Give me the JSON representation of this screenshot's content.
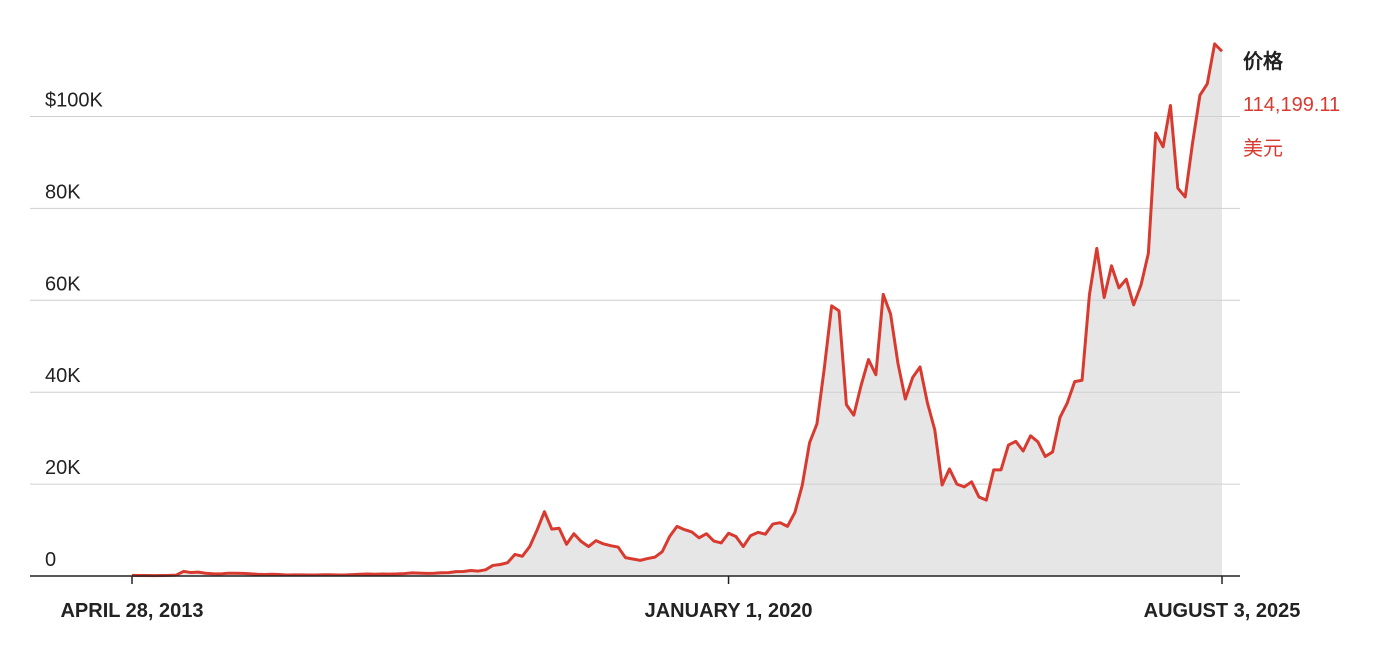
{
  "chart_data": {
    "type": "area_line",
    "categories": [
      "APRIL 28, 2013",
      null,
      null,
      null,
      null,
      null,
      null,
      null,
      null,
      null,
      null,
      null,
      null,
      null,
      null,
      null,
      null,
      null,
      null,
      null,
      null,
      null,
      null,
      null,
      null,
      null,
      null,
      null,
      null,
      null,
      null,
      null,
      null,
      null,
      null,
      null,
      null,
      null,
      null,
      null,
      null,
      null,
      null,
      null,
      null,
      null,
      null,
      null,
      null,
      null,
      null,
      null,
      null,
      null,
      null,
      null,
      null,
      null,
      null,
      null,
      null,
      null,
      null,
      null,
      null,
      null,
      null,
      null,
      null,
      null,
      null,
      null,
      null,
      null,
      null,
      null,
      null,
      null,
      null,
      null,
      null,
      "JANUARY 1, 2020",
      null,
      null,
      null,
      null,
      null,
      null,
      null,
      null,
      null,
      null,
      null,
      null,
      null,
      null,
      null,
      null,
      null,
      null,
      null,
      null,
      null,
      null,
      null,
      null,
      null,
      null,
      null,
      null,
      null,
      null,
      null,
      null,
      null,
      null,
      null,
      null,
      null,
      null,
      null,
      null,
      null,
      null,
      null,
      null,
      null,
      null,
      null,
      null,
      null,
      null,
      null,
      null,
      null,
      null,
      null,
      null,
      null,
      null,
      null,
      null,
      null,
      null,
      null,
      null,
      null,
      null,
      "AUGUST 3, 2025"
    ],
    "values": [
      130,
      120,
      100,
      90,
      120,
      130,
      200,
      1000,
      750,
      850,
      600,
      500,
      450,
      600,
      600,
      580,
      480,
      390,
      340,
      380,
      320,
      220,
      250,
      250,
      230,
      230,
      260,
      280,
      230,
      240,
      310,
      380,
      430,
      370,
      440,
      420,
      450,
      530,
      670,
      620,
      570,
      610,
      700,
      740,
      960,
      970,
      1190,
      1070,
      1350,
      2300,
      2500,
      2900,
      4700,
      4300,
      6400,
      10000,
      14000,
      10200,
      10400,
      6900,
      9200,
      7500,
      6400,
      7700,
      7000,
      6600,
      6300,
      4000,
      3700,
      3400,
      3800,
      4100,
      5300,
      8600,
      10800,
      10100,
      9600,
      8300,
      9200,
      7600,
      7200,
      9300,
      8600,
      6400,
      8800,
      9500,
      9100,
      11300,
      11600,
      10800,
      13800,
      19700,
      29000,
      33100,
      45200,
      58800,
      57700,
      37300,
      35000,
      41500,
      47100,
      43800,
      61300,
      57000,
      46300,
      38500,
      43200,
      45500,
      37700,
      31800,
      19800,
      23300,
      20000,
      19400,
      20500,
      17200,
      16500,
      23100,
      23100,
      28500,
      29300,
      27200,
      30500,
      29200,
      26000,
      27000,
      34500,
      37700,
      42300,
      42600,
      61200,
      71300,
      60600,
      67500,
      62700,
      64600,
      59000,
      63300,
      70200,
      96400,
      93400,
      102400,
      84400,
      82500,
      94200,
      104600,
      107100,
      115800,
      114199.11
    ],
    "color": "#d93a30",
    "area_color": "#e6e6e6",
    "ylim": [
      0,
      121000
    ],
    "yticks": [
      {
        "value": 0,
        "label": "0"
      },
      {
        "value": 20000,
        "label": "20K"
      },
      {
        "value": 40000,
        "label": "40K"
      },
      {
        "value": 60000,
        "label": "60K"
      },
      {
        "value": 80000,
        "label": "80K"
      },
      {
        "value": 100000,
        "label": "$100K"
      }
    ],
    "grid": true,
    "annotations": {
      "price_label": "价格",
      "price_value": "114,199.11",
      "unit": "美元"
    }
  }
}
